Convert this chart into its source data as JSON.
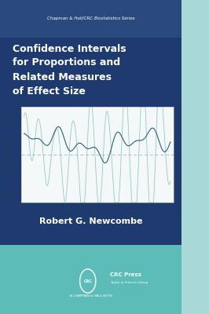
{
  "bg_dark": "#1e3a6e",
  "bg_teal": "#5bbcb8",
  "bg_teal_right": "#a8d8d8",
  "series_text": "Chapman & Hall/CRC Biostatistics Series",
  "title_line1": "Confidence Intervals",
  "title_line2": "for Proportions and",
  "title_line3": "Related Measures",
  "title_line4": "of Effect Size",
  "author": "Robert G. Newcombe",
  "crc_text": "CRC Press",
  "crc_sub": "Taylor & Francis Group",
  "crc_sub2": "A CHAPMAN & HALL BOOK",
  "plot_bg": "#f5f8f8",
  "line_color_main": "#2a6080",
  "line_color_light": "#7abcbc",
  "dashed_line_color": "#90b8b8",
  "series_bar_color": "#2a4a7e",
  "fig_width": 2.66,
  "fig_height": 4.0,
  "dpi": 100
}
